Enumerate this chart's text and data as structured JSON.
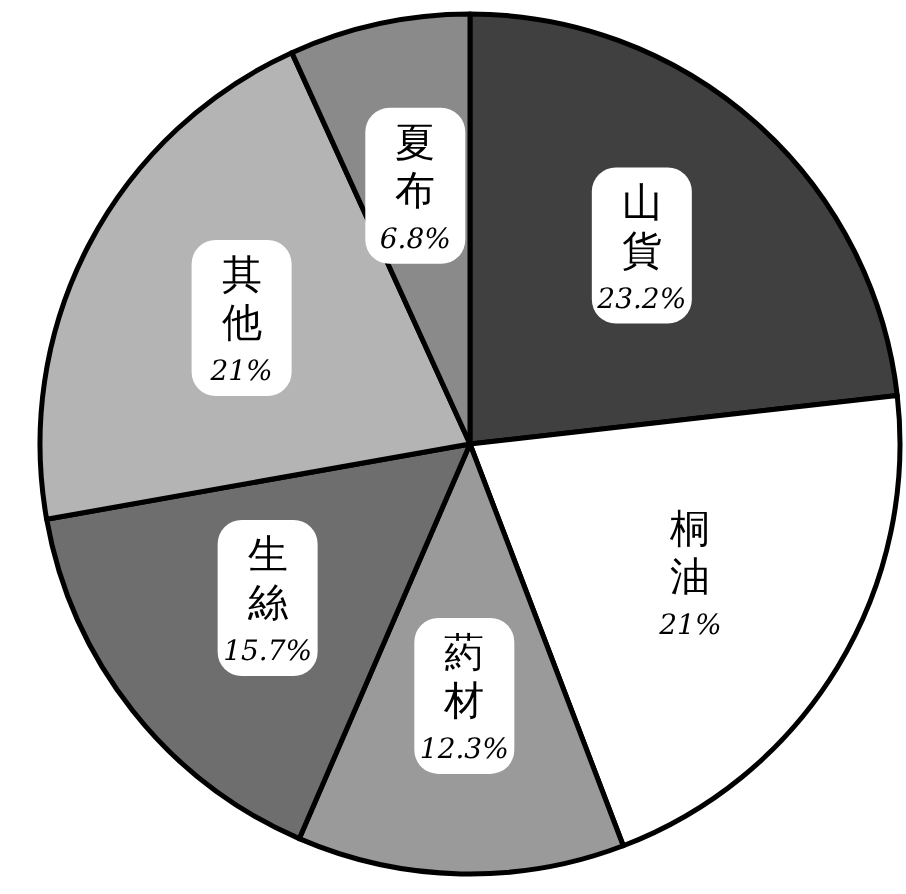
{
  "chart_data": {
    "type": "pie",
    "categories": [
      "山貨",
      "桐油",
      "葯材",
      "生絲",
      "其他",
      "夏布"
    ],
    "values": [
      23.2,
      21,
      12.3,
      15.7,
      21,
      6.8
    ],
    "value_labels": [
      "23.2%",
      "21%",
      "12.3%",
      "15.7%",
      "21%",
      "6.8%"
    ],
    "colors": [
      "#404040",
      "#ffffff",
      "#9a9a9a",
      "#6e6e6e",
      "#b4b4b4",
      "#8a8a8a"
    ]
  }
}
